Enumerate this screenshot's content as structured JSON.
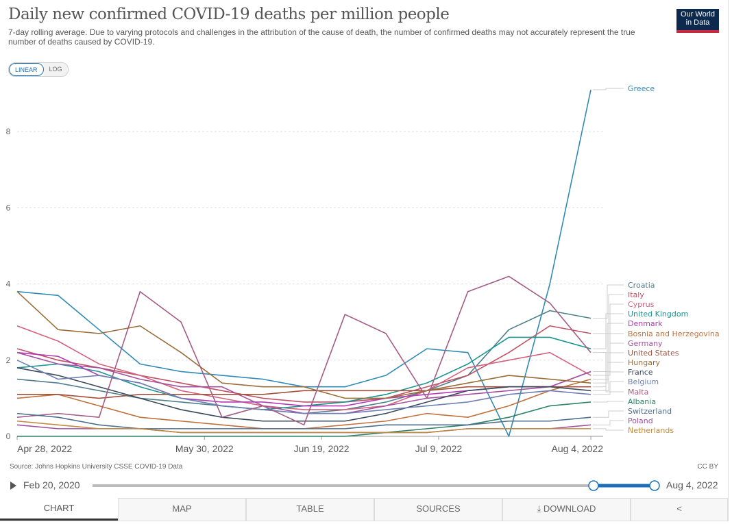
{
  "header": {
    "title": "Daily new confirmed COVID-19 deaths per million people",
    "subtitle": "7-day rolling average. Due to varying protocols and challenges in the attribution of the cause of death, the number of confirmed deaths may not accurately represent the true number of deaths caused by COVID-19.",
    "logo_line1": "Our World",
    "logo_line2": "in Data"
  },
  "scale_toggle": {
    "linear": "LINEAR",
    "log": "LOG",
    "active": "LINEAR"
  },
  "chart_data": {
    "type": "line",
    "title": "Daily new confirmed COVID-19 deaths per million people",
    "xlabel": "",
    "ylabel": "",
    "x_days_from_start": [
      0,
      7,
      14,
      21,
      28,
      35,
      42,
      49,
      56,
      63,
      70,
      77,
      84,
      91,
      98
    ],
    "x_start": "Apr 28, 2022",
    "x_end": "Aug 4, 2022",
    "xticks": [
      {
        "label": "Apr 28, 2022",
        "day": 0
      },
      {
        "label": "May 30, 2022",
        "day": 32
      },
      {
        "label": "Jun 19, 2022",
        "day": 52
      },
      {
        "label": "Jul 9, 2022",
        "day": 72
      },
      {
        "label": "Aug 4, 2022",
        "day": 98
      }
    ],
    "yticks": [
      0,
      2,
      4,
      6,
      8
    ],
    "ylim": [
      0,
      9.2
    ],
    "grid": true,
    "legend": "right (line-end labels)",
    "series": [
      {
        "name": "Greece",
        "color": "#2f8bb5",
        "values": [
          3.8,
          3.7,
          2.8,
          1.9,
          1.7,
          1.6,
          1.5,
          1.3,
          1.3,
          1.6,
          2.3,
          2.2,
          0.0,
          4.0,
          9.1
        ]
      },
      {
        "name": "Croatia",
        "color": "#4e7f8a",
        "values": [
          1.5,
          1.4,
          1.2,
          1.0,
          0.9,
          0.8,
          0.7,
          0.6,
          0.7,
          0.9,
          1.2,
          1.6,
          2.8,
          3.3,
          3.1
        ]
      },
      {
        "name": "Italy",
        "color": "#c15065",
        "values": [
          2.3,
          2.0,
          1.8,
          1.6,
          1.4,
          1.2,
          1.0,
          0.9,
          0.9,
          1.0,
          1.3,
          1.6,
          2.2,
          2.9,
          2.7
        ]
      },
      {
        "name": "Cyprus",
        "color": "#d3617e",
        "values": [
          2.9,
          2.5,
          1.9,
          1.6,
          1.2,
          1.0,
          0.8,
          0.7,
          0.7,
          0.8,
          1.2,
          1.8,
          2.0,
          2.2,
          1.6
        ]
      },
      {
        "name": "United Kingdom",
        "color": "#18958f",
        "values": [
          1.8,
          1.9,
          1.7,
          1.3,
          1.0,
          0.8,
          0.7,
          0.8,
          0.9,
          1.1,
          1.4,
          1.9,
          2.6,
          2.6,
          2.3
        ]
      },
      {
        "name": "Denmark",
        "color": "#b13ab4",
        "values": [
          2.2,
          2.1,
          1.6,
          1.4,
          1.0,
          0.9,
          0.9,
          0.8,
          0.8,
          1.0,
          1.1,
          1.2,
          1.3,
          1.3,
          1.7
        ]
      },
      {
        "name": "Bosnia and Herzegovina",
        "color": "#c0703b",
        "values": [
          1.0,
          1.1,
          0.8,
          0.5,
          0.4,
          0.3,
          0.2,
          0.2,
          0.3,
          0.4,
          0.6,
          0.5,
          0.8,
          1.2,
          1.5
        ]
      },
      {
        "name": "Germany",
        "color": "#a650a0",
        "values": [
          2.2,
          1.9,
          1.8,
          1.5,
          1.3,
          1.3,
          0.8,
          0.6,
          0.6,
          0.8,
          1.0,
          1.1,
          1.2,
          1.3,
          1.7
        ]
      },
      {
        "name": "United States",
        "color": "#a2503b",
        "values": [
          1.1,
          1.1,
          1.0,
          1.1,
          1.1,
          1.1,
          1.1,
          1.2,
          1.2,
          1.2,
          1.2,
          1.3,
          1.3,
          1.3,
          1.3
        ]
      },
      {
        "name": "Hungary",
        "color": "#996d39",
        "values": [
          3.8,
          2.8,
          2.7,
          2.9,
          2.2,
          1.4,
          1.3,
          1.3,
          1.0,
          1.0,
          1.2,
          1.4,
          1.6,
          1.5,
          1.4
        ]
      },
      {
        "name": "France",
        "color": "#38495c",
        "values": [
          1.8,
          1.6,
          1.3,
          1.0,
          0.7,
          0.5,
          0.4,
          0.4,
          0.4,
          0.6,
          0.9,
          1.2,
          1.3,
          1.3,
          1.2
        ]
      },
      {
        "name": "Belgium",
        "color": "#6d7fb3",
        "values": [
          2.0,
          1.5,
          1.6,
          1.4,
          1.0,
          0.8,
          0.7,
          0.6,
          0.6,
          0.7,
          0.8,
          0.9,
          1.1,
          1.2,
          1.1
        ]
      },
      {
        "name": "Malta",
        "color": "#a35c85",
        "values": [
          0.5,
          0.6,
          0.5,
          3.8,
          3.0,
          0.5,
          0.8,
          0.3,
          3.2,
          2.7,
          1.0,
          3.8,
          4.2,
          3.5,
          2.2
        ]
      },
      {
        "name": "Albania",
        "color": "#2c8465",
        "values": [
          0.0,
          0.0,
          0.0,
          0.0,
          0.0,
          0.0,
          0.0,
          0.0,
          0.0,
          0.1,
          0.2,
          0.3,
          0.5,
          0.8,
          0.9
        ]
      },
      {
        "name": "Switzerland",
        "color": "#4d6d8c",
        "values": [
          0.6,
          0.5,
          0.3,
          0.2,
          0.2,
          0.2,
          0.2,
          0.2,
          0.2,
          0.3,
          0.3,
          0.3,
          0.4,
          0.4,
          0.5
        ]
      },
      {
        "name": "Poland",
        "color": "#a050a0",
        "values": [
          0.3,
          0.2,
          0.2,
          0.2,
          0.1,
          0.1,
          0.1,
          0.1,
          0.1,
          0.1,
          0.1,
          0.2,
          0.2,
          0.2,
          0.3
        ]
      },
      {
        "name": "Netherlands",
        "color": "#c28a3c",
        "values": [
          0.4,
          0.3,
          0.2,
          0.2,
          0.1,
          0.1,
          0.1,
          0.1,
          0.1,
          0.1,
          0.1,
          0.2,
          0.2,
          0.2,
          0.2
        ]
      }
    ]
  },
  "footer": {
    "source": "Source: Johns Hopkins University CSSE COVID-19 Data",
    "license": "CC BY"
  },
  "timeline": {
    "start_label": "Feb 20, 2020",
    "end_label": "Aug 4, 2022",
    "range_start_fraction": 0.9,
    "range_end_fraction": 1.0
  },
  "tabs": [
    "CHART",
    "MAP",
    "TABLE",
    "SOURCES",
    "DOWNLOAD"
  ],
  "active_tab": "CHART"
}
